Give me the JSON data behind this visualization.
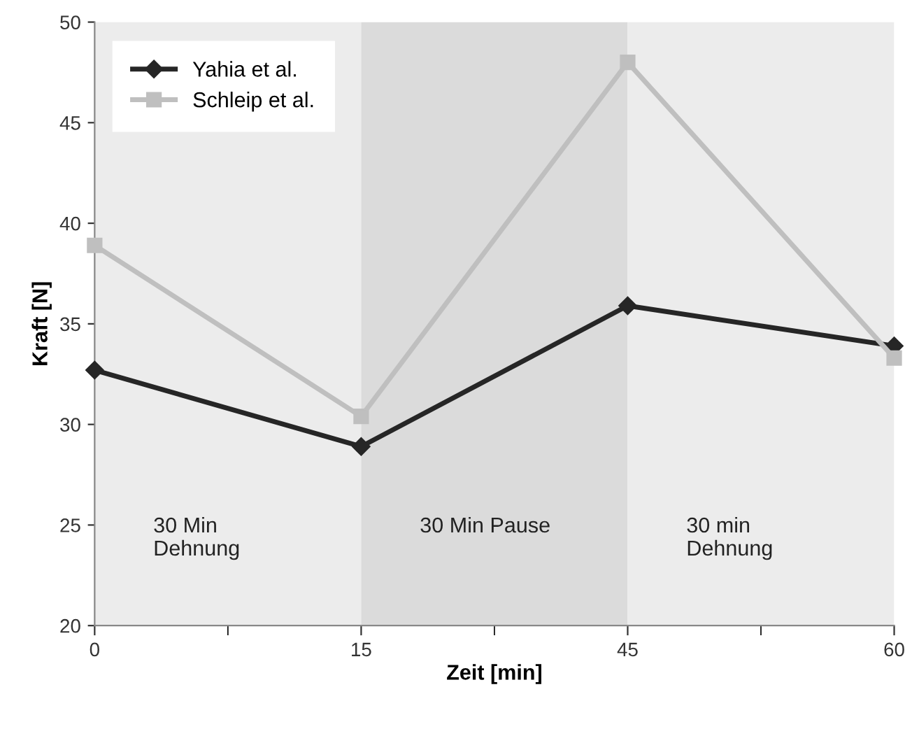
{
  "chart_data": {
    "type": "line",
    "xlabel": "Zeit [min]",
    "ylabel": "Kraft [N]",
    "categories": [
      "0",
      "15",
      "45",
      "60"
    ],
    "series": [
      {
        "name": "Yahia et al.",
        "color": "#262626",
        "marker": "diamond",
        "values": [
          32.7,
          28.9,
          35.9,
          33.9
        ]
      },
      {
        "name": "Schleip et al.",
        "color": "#bfbfbf",
        "marker": "square",
        "values": [
          38.9,
          30.4,
          48.0,
          33.3
        ]
      }
    ],
    "bands": [
      {
        "axis": "x",
        "from": "0",
        "to": "15",
        "label": "30 Min\nDehnung",
        "color": "#ececec"
      },
      {
        "axis": "x",
        "from": "15",
        "to": "45",
        "label": "30 Min Pause",
        "color": "#dbdbdb"
      },
      {
        "axis": "x",
        "from": "45",
        "to": "60",
        "label": "30 min\nDehnung",
        "color": "#ececec"
      }
    ],
    "ylim": [
      20,
      50
    ],
    "yticks": [
      20,
      25,
      30,
      35,
      40,
      45,
      50
    ],
    "grid": false,
    "legend": "top left",
    "line_style": "solid"
  }
}
